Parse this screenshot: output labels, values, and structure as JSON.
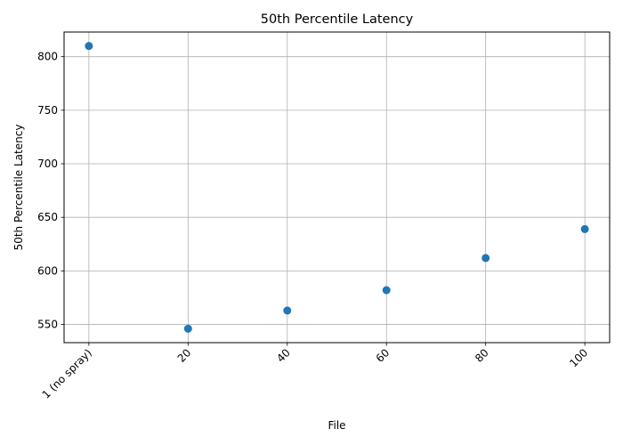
{
  "chart_data": {
    "type": "scatter",
    "title": "50th Percentile Latency",
    "xlabel": "File",
    "ylabel": "50th Percentile Latency",
    "x_tick_labels": [
      "1 (no spray)",
      "20",
      "40",
      "60",
      "80",
      "100"
    ],
    "x": [
      0,
      1,
      2,
      3,
      4,
      5
    ],
    "y": [
      810,
      546,
      563,
      582,
      612,
      639
    ],
    "xlim": [
      -0.25,
      5.25
    ],
    "ylim": [
      533,
      823
    ],
    "y_ticks": [
      550,
      600,
      650,
      700,
      750,
      800
    ],
    "grid": true,
    "marker_color": "#1f77b4"
  }
}
